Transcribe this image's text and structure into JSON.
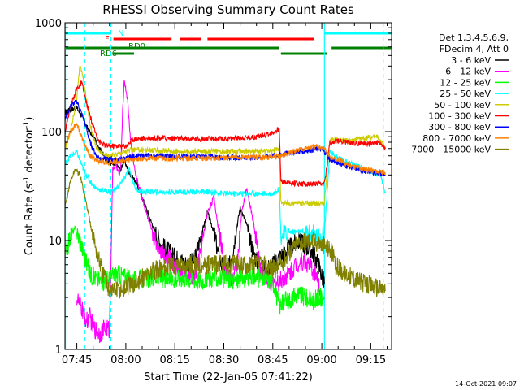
{
  "chart_data": {
    "type": "line",
    "title": "RHESSI Observing Summary Count Rates",
    "xlabel": "Start Time (22-Jan-05 07:41:22)",
    "ylabel_main": "Count Rate (s",
    "ylabel_sup1": "-1",
    "ylabel_mid": " detector",
    "ylabel_sup2": "-1",
    "ylabel_end": ")",
    "timestamp": "14-Oct-2021 09:07",
    "x_start_min": 461.37,
    "x_end_min": 561.37,
    "yscale": "log",
    "ylim": [
      1,
      1000
    ],
    "y_ticks": [
      {
        "v": 1,
        "label": "1"
      },
      {
        "v": 10,
        "label": "10"
      },
      {
        "v": 100,
        "label": "100"
      },
      {
        "v": 1000,
        "label": "1000"
      }
    ],
    "x_ticks": [
      {
        "v": 465,
        "label": "07:45"
      },
      {
        "v": 480,
        "label": "08:00"
      },
      {
        "v": 495,
        "label": "08:15"
      },
      {
        "v": 510,
        "label": "08:30"
      },
      {
        "v": 525,
        "label": "08:45"
      },
      {
        "v": 540,
        "label": "09:00"
      },
      {
        "v": 555,
        "label": "09:15"
      }
    ],
    "legend_header": [
      "Det 1,3,4,5,6,9,",
      "FDecim 4, Att 0"
    ],
    "flag_bars": [
      {
        "label": "N",
        "color": "#00ffff",
        "level": 0,
        "segments": [
          [
            461.4,
            475.5
          ],
          [
            540.8,
            561.2
          ]
        ]
      },
      {
        "label": "F",
        "color": "#ff0000",
        "level": 1,
        "segments": [
          [
            476.2,
            494.0
          ],
          [
            496.5,
            503.0
          ],
          [
            505.0,
            537.5
          ]
        ]
      },
      {
        "label": "RD0",
        "color": "#008000",
        "level": 2,
        "segments": [
          [
            461.4,
            527.0
          ]
        ]
      },
      {
        "label": "",
        "color": "#008000",
        "level": 3,
        "segments": [
          [
            527.5,
            541.5
          ]
        ]
      },
      {
        "label": "",
        "color": "#008000",
        "level": 2,
        "segments": [
          [
            543.0,
            561.2
          ]
        ]
      },
      {
        "label": "RD6",
        "color": "#008000",
        "level": 3,
        "segments": [
          [
            476.0,
            482.5
          ]
        ]
      }
    ],
    "vlines": [
      {
        "x": 461.5,
        "color": "#00ffff",
        "dashed": false
      },
      {
        "x": 467.4,
        "color": "#00ffff",
        "dashed": true
      },
      {
        "x": 475.4,
        "color": "#00ffff",
        "dashed": true
      },
      {
        "x": 540.8,
        "color": "#00ffff",
        "dashed": false
      },
      {
        "x": 558.8,
        "color": "#00ffff",
        "dashed": true
      }
    ],
    "series": [
      {
        "name": "3 - 6 keV",
        "color": "#000000",
        "x": [
          461.4,
          463,
          465,
          466.5,
          468,
          470,
          472,
          474,
          476,
          477.5,
          478.5,
          479.5,
          481,
          483,
          485,
          487,
          489,
          491,
          493,
          495,
          497,
          499,
          501,
          503,
          505,
          507,
          508.5,
          510,
          511.5,
          513,
          515,
          517,
          519,
          520.5,
          521.5,
          523,
          525,
          527,
          529,
          531,
          533,
          535,
          537,
          539,
          540.8
        ],
        "y": [
          150,
          160,
          165,
          140,
          110,
          90,
          70,
          55,
          50,
          48,
          45,
          55,
          42,
          35,
          25,
          17,
          12,
          9,
          8,
          7,
          6.5,
          6,
          6.5,
          11,
          18,
          12,
          7,
          5.5,
          5.5,
          9,
          20,
          14,
          8,
          6,
          5.5,
          5.5,
          6,
          7,
          8,
          9,
          10,
          9,
          8,
          6,
          4
        ]
      },
      {
        "name": "6 - 12 keV",
        "color": "#ff00ff",
        "x": [
          465,
          466,
          467,
          468,
          469,
          470,
          471,
          472,
          473,
          474,
          475,
          476,
          477,
          478,
          478.5,
          479,
          479.5,
          480.5,
          481.5,
          483,
          485,
          487,
          489,
          491,
          493,
          495,
          497,
          499,
          501,
          503,
          505,
          507,
          508,
          509.5,
          511,
          512.5,
          514,
          515.5,
          517,
          518.5,
          520,
          521,
          522.5,
          524,
          526,
          528,
          530,
          532,
          534,
          536,
          538,
          540
        ],
        "y": [
          3,
          2.5,
          2.2,
          1.8,
          2,
          1.6,
          1.5,
          1.4,
          1.5,
          1.6,
          1.5,
          45,
          50,
          40,
          50,
          150,
          300,
          200,
          80,
          40,
          25,
          15,
          10,
          8,
          7,
          6,
          5,
          4.5,
          4.5,
          8,
          18,
          25,
          15,
          8,
          5,
          4.2,
          6,
          18,
          30,
          18,
          10,
          6,
          4.5,
          4,
          4,
          4.5,
          5,
          6,
          6.5,
          6,
          5,
          3
        ]
      },
      {
        "name": "12 - 25 keV",
        "color": "#00ff00",
        "x": [
          461.4,
          463,
          464.5,
          466,
          467.5,
          469,
          471,
          473,
          475,
          477,
          479,
          481,
          483,
          485,
          487,
          489,
          491,
          493,
          495,
          497,
          499,
          501,
          503,
          505,
          507,
          509,
          511,
          513,
          515,
          517,
          519,
          521,
          523,
          525,
          527,
          529,
          531,
          533,
          535,
          537,
          539,
          540.8
        ],
        "y": [
          7,
          11,
          13,
          10,
          7,
          5,
          4.5,
          4.2,
          4.5,
          5,
          4.8,
          4.5,
          4.3,
          4.4,
          4.5,
          4.6,
          4.5,
          4.4,
          4.5,
          4.6,
          4.5,
          4.4,
          4.3,
          4.5,
          4.6,
          4.5,
          4.4,
          4.3,
          4.4,
          4.5,
          4.6,
          4.5,
          4.4,
          4.3,
          2.5,
          2.8,
          3,
          3.2,
          3,
          2.8,
          3,
          3
        ]
      },
      {
        "name": "25 - 50 keV",
        "color": "#00ffff",
        "x": [
          461.4,
          463,
          465,
          467,
          469,
          471,
          473,
          475,
          477,
          479,
          481,
          483,
          485,
          490,
          495,
          500,
          505,
          510,
          515,
          520,
          525,
          527,
          527.5,
          530,
          535,
          539,
          540.8,
          542.5,
          544,
          546,
          548,
          550,
          552,
          554,
          556,
          558,
          559.5
        ],
        "y": [
          50,
          60,
          65,
          45,
          35,
          30,
          29,
          28,
          30,
          35,
          45,
          30,
          28,
          28,
          28,
          28,
          28,
          27,
          27,
          27,
          27,
          30,
          11,
          12,
          12,
          11,
          12,
          65,
          60,
          55,
          52,
          50,
          47,
          45,
          42,
          40,
          27
        ]
      },
      {
        "name": "50 - 100 keV",
        "color": "#cccc00",
        "x": [
          461.4,
          463,
          465,
          466,
          467,
          469,
          471,
          473,
          475,
          477,
          479,
          481,
          483,
          485,
          490,
          495,
          500,
          505,
          510,
          515,
          520,
          525,
          527,
          527.5,
          530,
          535,
          540,
          540.8,
          542.5,
          545,
          548,
          551,
          554,
          557,
          559.5
        ],
        "y": [
          70,
          100,
          200,
          420,
          300,
          120,
          70,
          62,
          60,
          62,
          65,
          67,
          68,
          68,
          67,
          66,
          66,
          66,
          66,
          66,
          66,
          67,
          70,
          22,
          22,
          22,
          22,
          22,
          85,
          84,
          82,
          85,
          88,
          90,
          70
        ]
      },
      {
        "name": "100 - 300 keV",
        "color": "#ff0000",
        "x": [
          461.4,
          463,
          465,
          466.5,
          468,
          470,
          472,
          474,
          476,
          477.5,
          479,
          480.5,
          482,
          485,
          490,
          495,
          500,
          505,
          510,
          515,
          520,
          525,
          527,
          527.5,
          530,
          535,
          540,
          540.8,
          542.5,
          545,
          548,
          551,
          554,
          557,
          559.5
        ],
        "y": [
          100,
          170,
          250,
          280,
          180,
          110,
          80,
          74,
          74,
          74,
          73,
          75,
          85,
          87,
          88,
          87,
          86,
          86,
          86,
          88,
          90,
          98,
          105,
          35,
          34,
          33,
          33,
          33,
          80,
          82,
          80,
          78,
          78,
          80,
          70
        ]
      },
      {
        "name": "300 - 800 keV",
        "color": "#0000ff",
        "x": [
          461.4,
          463,
          465,
          466,
          467.5,
          469,
          471,
          473,
          475,
          477,
          479,
          481,
          483,
          486,
          490,
          495,
          500,
          505,
          510,
          515,
          520,
          525,
          528,
          531,
          534,
          537,
          539,
          540.8,
          542.5,
          545,
          548,
          551,
          554,
          557,
          559.5
        ],
        "y": [
          130,
          170,
          190,
          160,
          120,
          80,
          60,
          56,
          56,
          55,
          56,
          58,
          60,
          60,
          60,
          59,
          59,
          59,
          58,
          58,
          58,
          60,
          62,
          65,
          66,
          68,
          70,
          66,
          55,
          52,
          48,
          45,
          43,
          42,
          40
        ]
      },
      {
        "name": "800 - 7000 keV",
        "color": "#ff8000",
        "x": [
          461.4,
          463,
          465,
          467,
          469,
          471,
          473,
          475,
          477,
          479,
          481,
          483,
          486,
          490,
          495,
          500,
          505,
          510,
          515,
          520,
          525,
          528,
          531,
          534,
          537,
          539,
          540.8,
          542.5,
          545,
          548,
          551,
          554,
          557,
          559.5
        ],
        "y": [
          75,
          100,
          120,
          80,
          60,
          55,
          52,
          52,
          53,
          54,
          55,
          56,
          57,
          57,
          57,
          57,
          57,
          57,
          58,
          58,
          58,
          60,
          65,
          70,
          72,
          73,
          70,
          58,
          55,
          50,
          47,
          45,
          43,
          42
        ]
      },
      {
        "name": "7000 - 15000 keV",
        "color": "#808000",
        "x": [
          461.4,
          463,
          464.5,
          466,
          467.5,
          469,
          471,
          473,
          475,
          477,
          479,
          481,
          483,
          485,
          487,
          490,
          493,
          496,
          499,
          502,
          505,
          508,
          511,
          514,
          517,
          520,
          523,
          526,
          527,
          529,
          531,
          533,
          535,
          537,
          539,
          540.5,
          542,
          543,
          544,
          547,
          550,
          553,
          556,
          559.5
        ],
        "y": [
          20,
          35,
          45,
          40,
          25,
          15,
          8,
          5,
          3.5,
          3.5,
          3.6,
          3.8,
          4,
          4.5,
          5,
          5.5,
          5.8,
          6,
          6,
          6,
          6,
          6,
          6,
          6,
          6,
          6,
          5.8,
          5.5,
          6,
          7,
          8.5,
          9.5,
          10,
          10,
          9.5,
          9,
          8.5,
          8,
          6,
          5,
          4.5,
          4,
          3.8,
          3.5
        ]
      }
    ]
  }
}
